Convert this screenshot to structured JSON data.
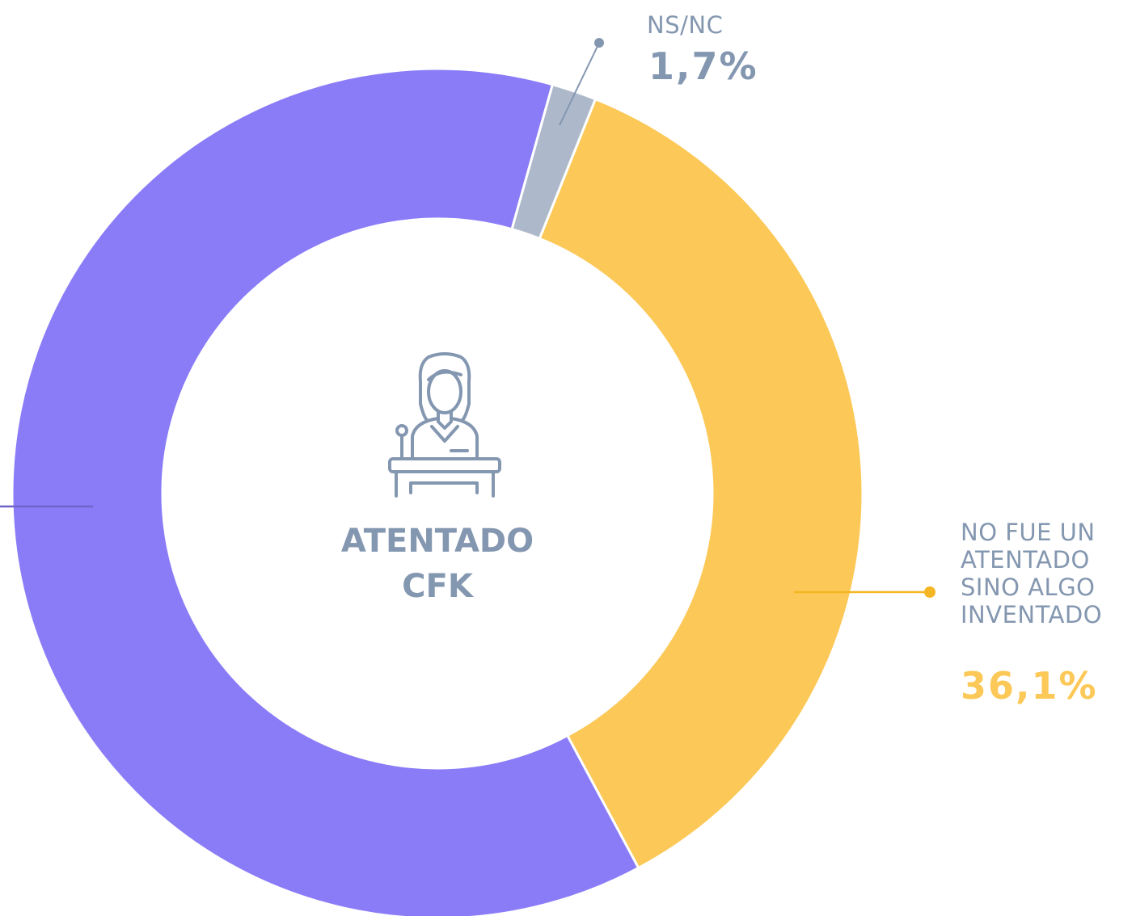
{
  "chart_data": {
    "type": "donut",
    "title": "ATENTADO CFK",
    "categories": [
      "NS/NC",
      "NO FUE UN ATENTADO SINO ALGO INVENTADO",
      null
    ],
    "values": [
      1.7,
      36.1,
      62.2
    ],
    "value_labels": [
      "1,7%",
      "36,1%",
      null
    ],
    "colors": [
      "#adb9ca",
      "#fcc857",
      "#8a7cf7"
    ]
  }
}
